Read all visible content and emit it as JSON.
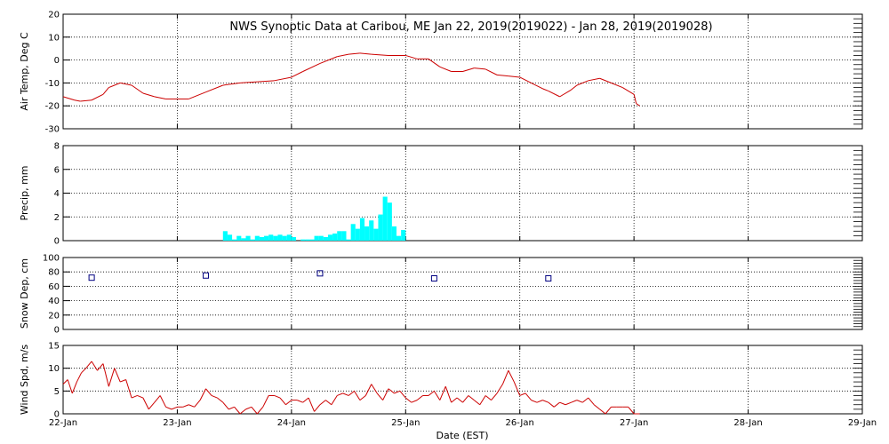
{
  "title": "NWS Synoptic Data at Caribou, ME   Jan 22, 2019(2019022) - Jan 28, 2019(2019028)",
  "xlabel": "Date (EST)",
  "x_ticks": [
    "22-Jan",
    "23-Jan",
    "24-Jan",
    "25-Jan",
    "26-Jan",
    "27-Jan",
    "28-Jan",
    "29-Jan"
  ],
  "colors": {
    "temp_line": "#cc0000",
    "precip_bar": "#00ffff",
    "snow_marker": "#000080",
    "wind_line": "#cc0000",
    "axis": "#000000",
    "grid": "#000000",
    "background": "#ffffff"
  },
  "chart_data": [
    {
      "type": "line",
      "ylabel": "Air Temp, Deg C",
      "ylim": [
        -30,
        20
      ],
      "yticks": [
        -30,
        -20,
        -10,
        0,
        10,
        20
      ],
      "xlim": [
        0,
        7
      ],
      "grid": true,
      "x": [
        0,
        0.1,
        0.15,
        0.25,
        0.35,
        0.4,
        0.5,
        0.6,
        0.7,
        0.8,
        0.9,
        1.0,
        1.1,
        1.25,
        1.4,
        1.55,
        1.7,
        1.85,
        2.0,
        2.1,
        2.25,
        2.4,
        2.5,
        2.6,
        2.7,
        2.85,
        3.0,
        3.1,
        3.2,
        3.3,
        3.4,
        3.5,
        3.6,
        3.7,
        3.8,
        3.9,
        4.0,
        4.1,
        4.2,
        4.25,
        4.35,
        4.45,
        4.5,
        4.6,
        4.7,
        4.8,
        4.9,
        5.0,
        5.02,
        5.05
      ],
      "series": [
        {
          "values": [
            -16,
            -17.5,
            -18,
            -17.5,
            -15,
            -12,
            -10,
            -11,
            -14.5,
            -16,
            -17,
            -17,
            -17,
            -14,
            -11,
            -10,
            -9.5,
            -9,
            -7.5,
            -5,
            -1.5,
            1.5,
            2.5,
            3,
            2.5,
            2,
            2,
            0.5,
            0.5,
            -3,
            -5,
            -5,
            -3.5,
            -4,
            -6.5,
            -7,
            -7.5,
            -10,
            -12.5,
            -13.5,
            -16,
            -13,
            -11,
            -9,
            -8,
            -10,
            -12,
            -15,
            -19,
            -20
          ]
        }
      ]
    },
    {
      "type": "bar",
      "ylabel": "Precip, mm",
      "ylim": [
        0,
        8
      ],
      "yticks": [
        0,
        2,
        4,
        6,
        8
      ],
      "xlim": [
        0,
        7
      ],
      "grid": true,
      "bin_width_days": 0.04,
      "x": [
        1.4,
        1.44,
        1.48,
        1.52,
        1.56,
        1.6,
        1.64,
        1.68,
        1.72,
        1.76,
        1.8,
        1.84,
        1.88,
        1.92,
        1.96,
        2.0,
        2.04,
        2.08,
        2.12,
        2.16,
        2.2,
        2.24,
        2.28,
        2.32,
        2.36,
        2.4,
        2.44,
        2.48,
        2.52,
        2.56,
        2.6,
        2.64,
        2.68,
        2.72,
        2.76,
        2.8,
        2.84,
        2.88,
        2.92,
        2.96
      ],
      "series": [
        {
          "values": [
            0.8,
            0.5,
            0.1,
            0.4,
            0.2,
            0.4,
            0.1,
            0.4,
            0.3,
            0.4,
            0.5,
            0.4,
            0.5,
            0.4,
            0.5,
            0.3,
            0.0,
            0.1,
            0.1,
            0.1,
            0.4,
            0.4,
            0.3,
            0.5,
            0.6,
            0.8,
            0.8,
            0.1,
            1.4,
            1.0,
            1.9,
            1.2,
            1.7,
            1.0,
            2.2,
            3.7,
            3.2,
            1.2,
            0.4,
            0.9
          ]
        }
      ]
    },
    {
      "type": "scatter",
      "ylabel": "Snow Dep, cm",
      "ylim": [
        0,
        100
      ],
      "yticks": [
        0,
        20,
        40,
        60,
        80,
        100
      ],
      "xlim": [
        0,
        7
      ],
      "grid": true,
      "x": [
        0.25,
        1.25,
        2.25,
        3.25,
        4.25
      ],
      "series": [
        {
          "values": [
            72,
            75,
            78,
            71,
            71
          ]
        }
      ]
    },
    {
      "type": "line",
      "ylabel": "Wind Spd, m/s",
      "ylim": [
        0,
        15
      ],
      "yticks": [
        0,
        5,
        10,
        15
      ],
      "xlim": [
        0,
        7
      ],
      "grid": true,
      "x": [
        0,
        0.04,
        0.08,
        0.12,
        0.16,
        0.2,
        0.25,
        0.3,
        0.35,
        0.4,
        0.45,
        0.5,
        0.55,
        0.6,
        0.65,
        0.7,
        0.75,
        0.8,
        0.85,
        0.9,
        0.95,
        1.0,
        1.05,
        1.1,
        1.15,
        1.2,
        1.25,
        1.3,
        1.35,
        1.4,
        1.45,
        1.5,
        1.55,
        1.6,
        1.65,
        1.7,
        1.75,
        1.8,
        1.85,
        1.9,
        1.95,
        2.0,
        2.05,
        2.1,
        2.15,
        2.2,
        2.25,
        2.3,
        2.35,
        2.4,
        2.45,
        2.5,
        2.55,
        2.6,
        2.65,
        2.7,
        2.75,
        2.8,
        2.85,
        2.9,
        2.95,
        3.0,
        3.05,
        3.1,
        3.15,
        3.2,
        3.25,
        3.3,
        3.35,
        3.4,
        3.45,
        3.5,
        3.55,
        3.6,
        3.65,
        3.7,
        3.75,
        3.8,
        3.85,
        3.9,
        3.95,
        4.0,
        4.05,
        4.1,
        4.15,
        4.2,
        4.25,
        4.3,
        4.35,
        4.4,
        4.45,
        4.5,
        4.55,
        4.6,
        4.65,
        4.7,
        4.75,
        4.8,
        4.85,
        4.9,
        4.95,
        5.0,
        5.05
      ],
      "series": [
        {
          "values": [
            6.5,
            7.5,
            4.5,
            7,
            9,
            10,
            11.5,
            9.5,
            11,
            6,
            10,
            7,
            7.5,
            3.5,
            4,
            3.5,
            1,
            2.5,
            4,
            1.5,
            1,
            1.5,
            1.5,
            2,
            1.5,
            3,
            5.5,
            4,
            3.5,
            2.5,
            1,
            1.5,
            0,
            1,
            1.5,
            0,
            1.5,
            4,
            4,
            3.5,
            2,
            3,
            3,
            2.5,
            3.5,
            0.5,
            2,
            3,
            2,
            4,
            4.5,
            4,
            5,
            3,
            4,
            6.5,
            4.5,
            3,
            5.5,
            4.5,
            5,
            3.5,
            2.5,
            3,
            4,
            4,
            5,
            3,
            6,
            2.5,
            3.5,
            2.5,
            4,
            3,
            2,
            4,
            3,
            4.5,
            6.5,
            9.5,
            7,
            4,
            4.5,
            3,
            2.5,
            3,
            2.5,
            1.5,
            2.5,
            2,
            2.5,
            3,
            2.5,
            3.5,
            2,
            1,
            0,
            1.5,
            1.5,
            1.5,
            1.5,
            0,
            0
          ]
        }
      ]
    }
  ]
}
